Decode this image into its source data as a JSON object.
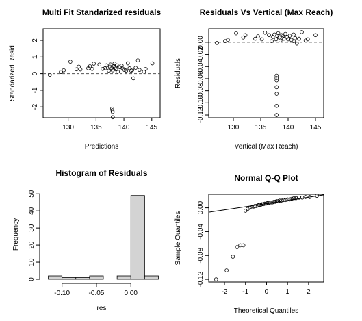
{
  "chart_data": [
    {
      "id": "p1",
      "type": "scatter",
      "title": "Multi Fit Standarized residuals",
      "xlabel": "Predictions",
      "ylabel": "Standarized Resid",
      "xlim": [
        125.5,
        146.5
      ],
      "ylim": [
        -2.65,
        2.7
      ],
      "xticks": [
        130,
        135,
        140,
        145
      ],
      "yticks": [
        -2,
        -1,
        0,
        1,
        2
      ],
      "xticklabels": [
        "130",
        "135",
        "140",
        "145"
      ],
      "yticklabels": [
        "-2",
        "-1",
        "0",
        "1",
        "2"
      ],
      "ytick_rotate": true,
      "refline": 0,
      "points": [
        [
          126.7,
          -0.07
        ],
        [
          128.7,
          0.1
        ],
        [
          129.2,
          0.2
        ],
        [
          130.4,
          0.72
        ],
        [
          131.5,
          0.26
        ],
        [
          131.9,
          0.42
        ],
        [
          132.2,
          0.25
        ],
        [
          133.6,
          0.32
        ],
        [
          133.9,
          0.44
        ],
        [
          134.3,
          0.28
        ],
        [
          134.6,
          0.6
        ],
        [
          135.6,
          0.55
        ],
        [
          136.2,
          0.28
        ],
        [
          136.6,
          0.32
        ],
        [
          136.9,
          0.5
        ],
        [
          137.3,
          0.18
        ],
        [
          137.5,
          0.42
        ],
        [
          137.6,
          0.55
        ],
        [
          137.8,
          0.32
        ],
        [
          138.0,
          0.2
        ],
        [
          138.2,
          0.45
        ],
        [
          138.3,
          0.6
        ],
        [
          138.4,
          0.35
        ],
        [
          138.6,
          0.25
        ],
        [
          138.7,
          0.5
        ],
        [
          138.9,
          0.12
        ],
        [
          139.1,
          0.42
        ],
        [
          139.3,
          0.38
        ],
        [
          139.6,
          0.48
        ],
        [
          139.8,
          0.3
        ],
        [
          140.1,
          0.22
        ],
        [
          140.4,
          0.18
        ],
        [
          140.7,
          0.62
        ],
        [
          141.0,
          0.32
        ],
        [
          141.3,
          0.18
        ],
        [
          141.5,
          0.22
        ],
        [
          141.7,
          -0.28
        ],
        [
          142.1,
          0.35
        ],
        [
          142.5,
          0.8
        ],
        [
          142.8,
          0.22
        ],
        [
          143.6,
          0.12
        ],
        [
          143.9,
          0.28
        ],
        [
          145.1,
          0.62
        ],
        [
          137.9,
          -2.1
        ],
        [
          137.95,
          -2.2
        ],
        [
          137.98,
          -2.3
        ],
        [
          138.0,
          -2.62
        ]
      ]
    },
    {
      "id": "p2",
      "type": "scatter",
      "title": "Residuals Vs Vertical (Max Reach)",
      "xlabel": "Vertical (Max Reach)",
      "ylabel": "Residuals",
      "xlim": [
        125.5,
        146.5
      ],
      "ylim": [
        -0.1245,
        0.0225
      ],
      "xticks": [
        130,
        135,
        140,
        145
      ],
      "yticks": [
        -0.12,
        -0.1,
        -0.08,
        -0.06,
        -0.04,
        -0.02,
        0.0
      ],
      "xticklabels": [
        "130",
        "135",
        "140",
        "145"
      ],
      "yticklabels": [
        "-0.12",
        "-0.10",
        "-0.08",
        "-0.06",
        "-0.04",
        "-0.02",
        "0.00"
      ],
      "ytick_rotate": true,
      "refline": 0,
      "points": [
        [
          127.0,
          -0.001
        ],
        [
          128.5,
          0.002
        ],
        [
          129.0,
          0.004
        ],
        [
          130.5,
          0.015
        ],
        [
          131.8,
          0.008
        ],
        [
          132.2,
          0.012
        ],
        [
          134.0,
          0.006
        ],
        [
          134.5,
          0.01
        ],
        [
          135.2,
          0.005
        ],
        [
          135.8,
          0.016
        ],
        [
          136.5,
          0.012
        ],
        [
          137.0,
          0.002
        ],
        [
          137.2,
          0.009
        ],
        [
          137.5,
          0.013
        ],
        [
          137.8,
          0.005
        ],
        [
          138.0,
          0.011
        ],
        [
          138.2,
          0.015
        ],
        [
          138.4,
          0.008
        ],
        [
          138.6,
          0.003
        ],
        [
          138.8,
          0.012
        ],
        [
          139.0,
          0.01
        ],
        [
          139.2,
          0.006
        ],
        [
          139.5,
          0.014
        ],
        [
          139.8,
          0.009
        ],
        [
          140.0,
          0.005
        ],
        [
          140.3,
          0.011
        ],
        [
          140.6,
          0.004
        ],
        [
          141.0,
          0.013
        ],
        [
          141.3,
          0.007
        ],
        [
          141.6,
          -0.002
        ],
        [
          142.0,
          0.006
        ],
        [
          142.5,
          0.017
        ],
        [
          143.2,
          0.003
        ],
        [
          143.6,
          0.005
        ],
        [
          145.0,
          0.012
        ],
        [
          141.0,
          0.002
        ],
        [
          137.9,
          -0.055
        ],
        [
          137.9,
          -0.059
        ],
        [
          137.9,
          -0.063
        ],
        [
          137.9,
          -0.074
        ],
        [
          137.9,
          -0.085
        ],
        [
          137.9,
          -0.105
        ],
        [
          137.9,
          -0.12
        ]
      ]
    },
    {
      "id": "p3",
      "type": "bar",
      "subtype": "histogram",
      "title": "Histogram of Residuals",
      "xlabel": "res",
      "ylabel": "Frequency",
      "xlim": [
        -0.1275,
        0.0425
      ],
      "ylim": [
        0,
        52.5
      ],
      "xticks": [
        -0.1,
        -0.05,
        0.0
      ],
      "yticks": [
        0,
        10,
        20,
        30,
        40,
        50
      ],
      "xticklabels": [
        "-0.10",
        "-0.05",
        "0.00"
      ],
      "yticklabels": [
        "0",
        "10",
        "20",
        "30",
        "40",
        "50"
      ],
      "ytick_rotate": true,
      "bin_edges": [
        -0.12,
        -0.1,
        -0.08,
        -0.06,
        -0.04,
        -0.02,
        0.0,
        0.02,
        0.04
      ],
      "values": [
        2,
        1,
        1,
        2,
        0,
        2,
        49,
        2
      ]
    },
    {
      "id": "p4",
      "type": "scatter",
      "subtype": "qqplot",
      "title": "Normal Q-Q Plot",
      "xlabel": "Theoretical Quantiles",
      "ylabel": "Sample Quantiles",
      "xlim": [
        -2.75,
        2.72
      ],
      "ylim": [
        -0.1245,
        0.0225
      ],
      "xticks": [
        -2,
        -1,
        0,
        1,
        2
      ],
      "yticks": [
        -0.12,
        -0.08,
        -0.04,
        0.0
      ],
      "xticklabels": [
        "-2",
        "-1",
        "0",
        "1",
        "2"
      ],
      "yticklabels": [
        "-0.12",
        "-0.08",
        "-0.04",
        "0.00"
      ],
      "ytick_rotate": true,
      "qqline": [
        [
          -2.75,
          -0.0075
        ],
        [
          2.72,
          0.0215
        ]
      ],
      "points": [
        [
          -2.4,
          -0.12
        ],
        [
          -1.9,
          -0.105
        ],
        [
          -1.6,
          -0.082
        ],
        [
          -1.4,
          -0.066
        ],
        [
          -1.25,
          -0.063
        ],
        [
          -1.1,
          -0.063
        ],
        [
          -1.0,
          -0.005
        ],
        [
          -0.9,
          -0.002
        ],
        [
          -0.8,
          0.0
        ],
        [
          -0.7,
          0.001
        ],
        [
          -0.62,
          0.002
        ],
        [
          -0.55,
          0.003
        ],
        [
          -0.48,
          0.003
        ],
        [
          -0.41,
          0.004
        ],
        [
          -0.35,
          0.005
        ],
        [
          -0.28,
          0.005
        ],
        [
          -0.22,
          0.006
        ],
        [
          -0.15,
          0.006
        ],
        [
          -0.09,
          0.007
        ],
        [
          -0.03,
          0.007
        ],
        [
          0.03,
          0.008
        ],
        [
          0.09,
          0.008
        ],
        [
          0.15,
          0.009
        ],
        [
          0.22,
          0.009
        ],
        [
          0.28,
          0.009
        ],
        [
          0.35,
          0.01
        ],
        [
          0.41,
          0.01
        ],
        [
          0.48,
          0.011
        ],
        [
          0.55,
          0.011
        ],
        [
          0.62,
          0.012
        ],
        [
          0.7,
          0.012
        ],
        [
          0.8,
          0.013
        ],
        [
          0.9,
          0.013
        ],
        [
          1.0,
          0.014
        ],
        [
          1.1,
          0.014
        ],
        [
          1.2,
          0.015
        ],
        [
          1.3,
          0.016
        ],
        [
          1.4,
          0.016
        ],
        [
          1.55,
          0.017
        ],
        [
          1.7,
          0.017
        ],
        [
          1.85,
          0.018
        ],
        [
          2.05,
          0.018
        ],
        [
          2.4,
          0.02
        ]
      ]
    }
  ]
}
